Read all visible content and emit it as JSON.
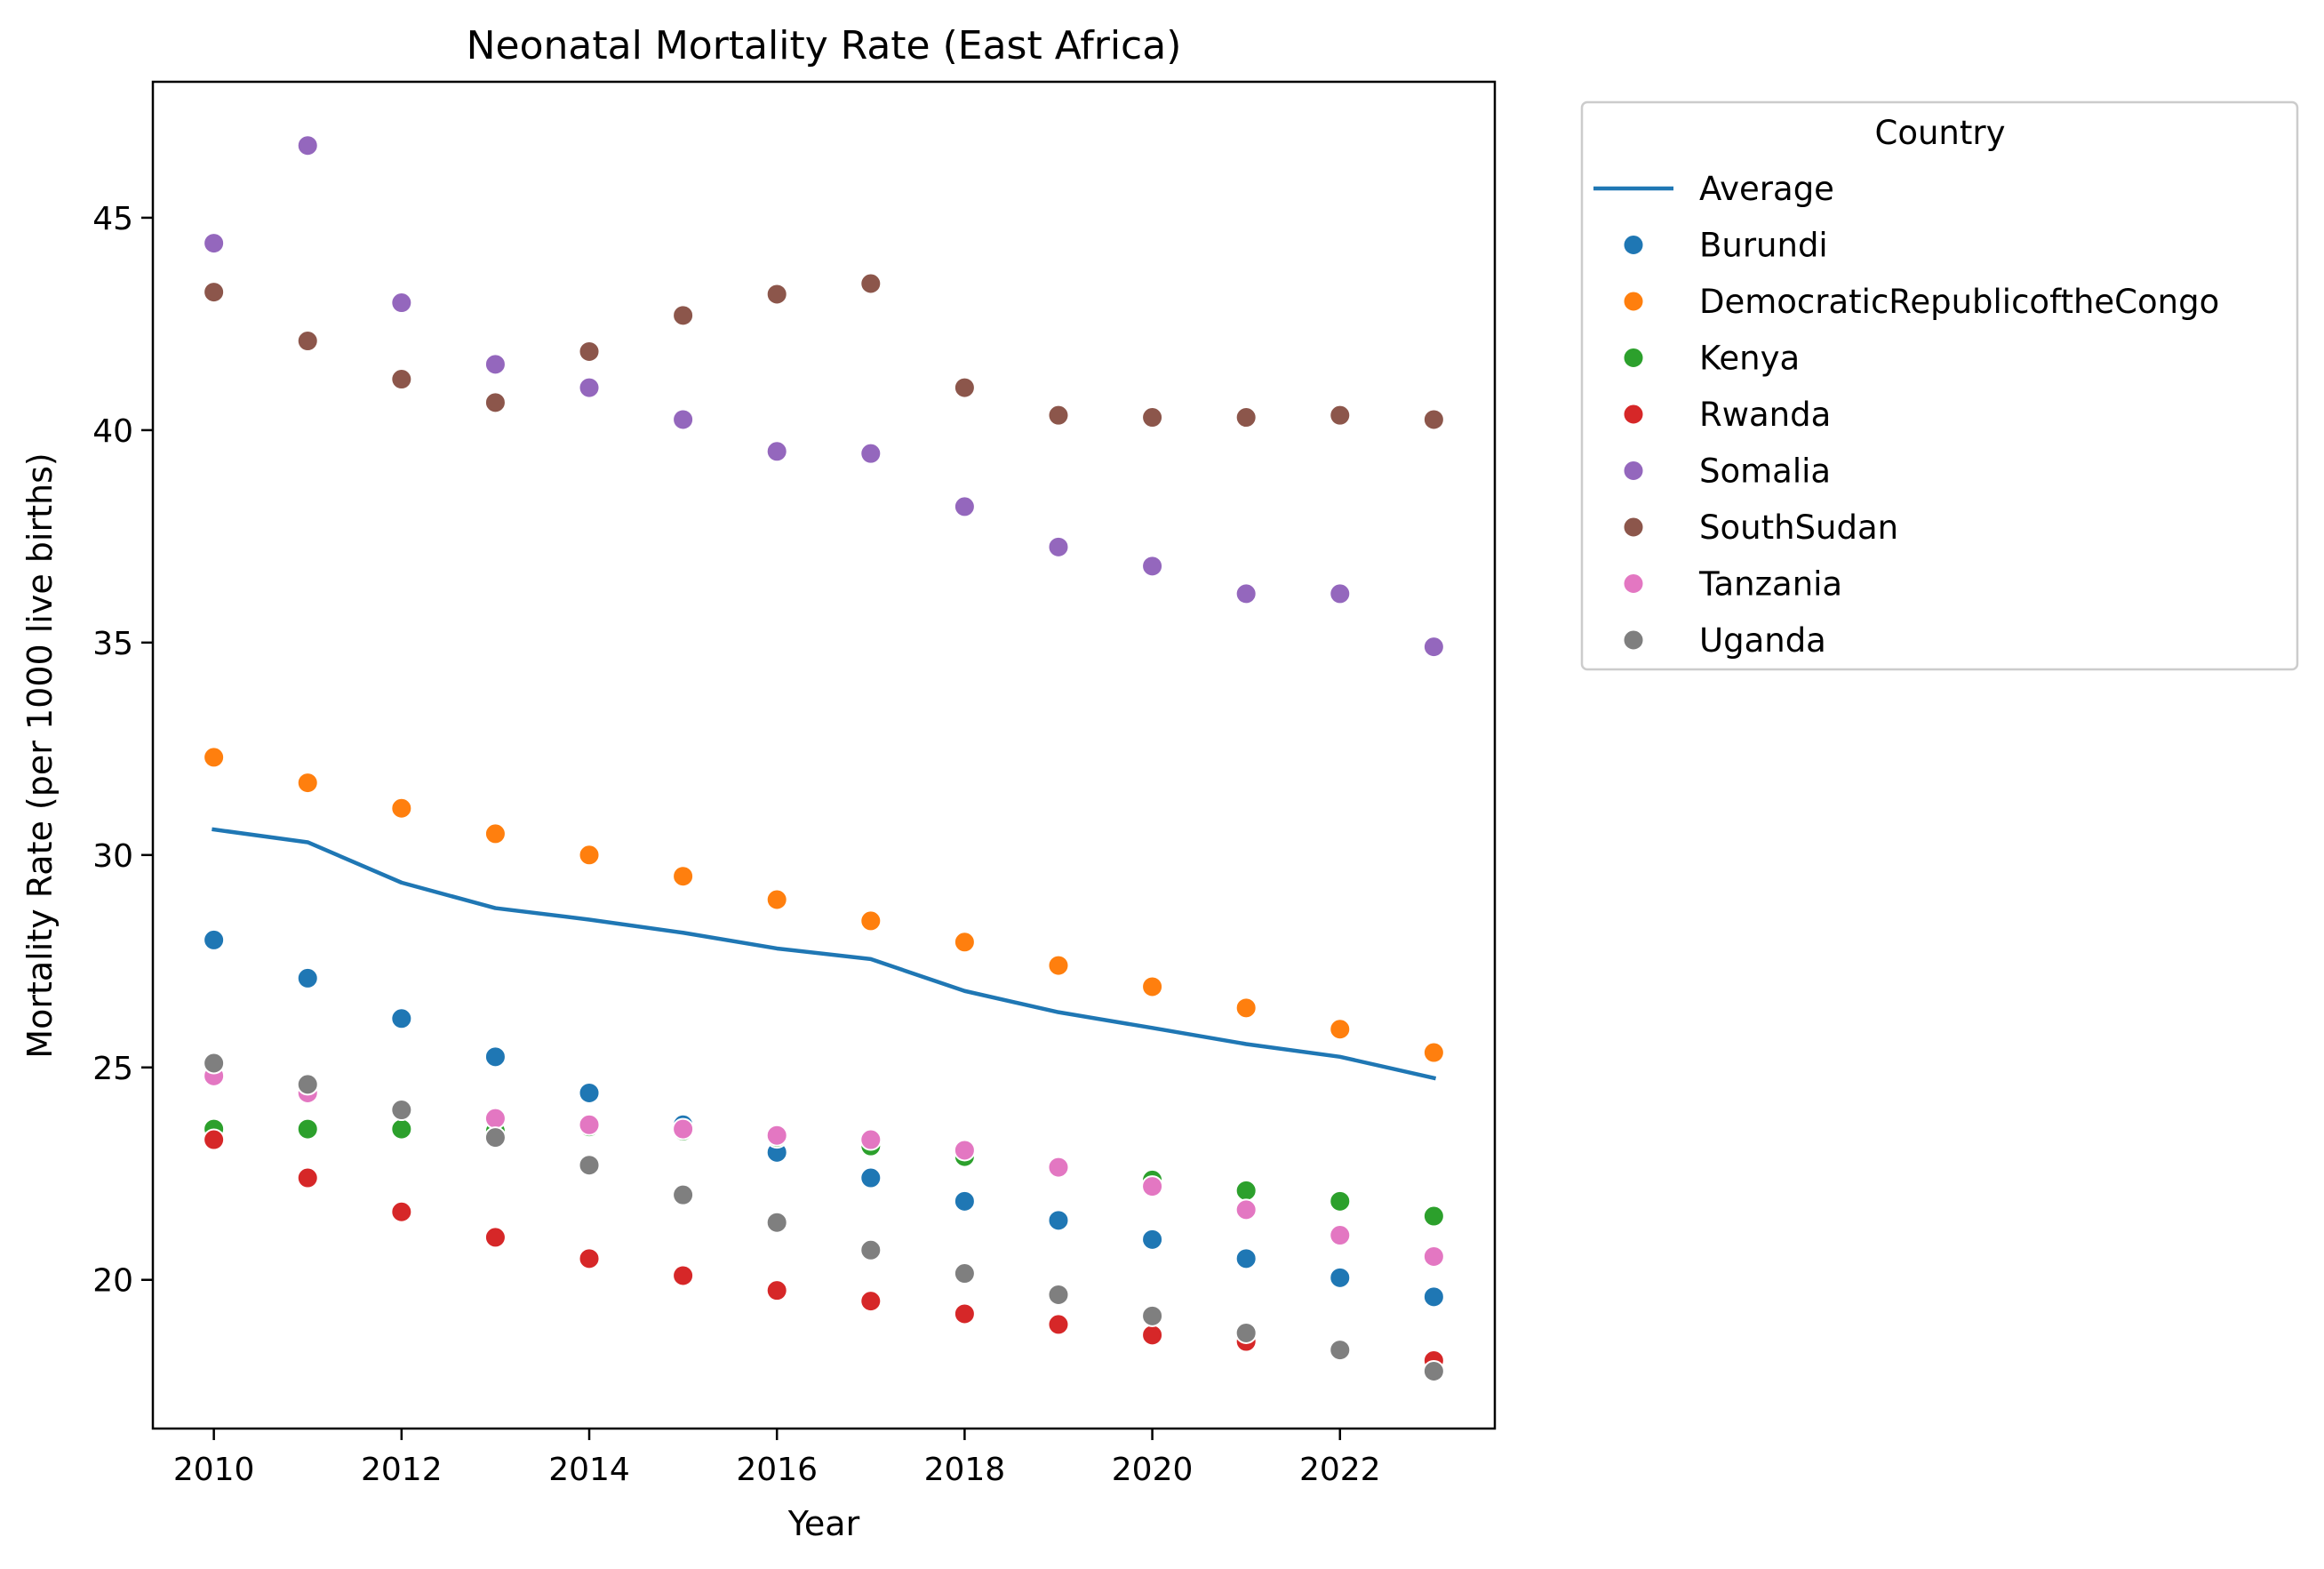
{
  "chart_data": {
    "type": "scatter",
    "title": "Neonatal Mortality Rate (East Africa)",
    "xlabel": "Year",
    "ylabel": "Mortality Rate (per 1000 live births)",
    "xlim": [
      2009.35,
      2023.65
    ],
    "ylim": [
      16.5,
      48.2
    ],
    "xticks": [
      2010,
      2012,
      2014,
      2016,
      2018,
      2020,
      2022
    ],
    "yticks": [
      20,
      25,
      30,
      35,
      40,
      45
    ],
    "grid": false,
    "legend": {
      "title": "Country",
      "placement": "outside-right-top"
    },
    "x": [
      2010,
      2011,
      2012,
      2013,
      2014,
      2015,
      2016,
      2017,
      2018,
      2019,
      2020,
      2021,
      2022,
      2023
    ],
    "average": {
      "name": "Average",
      "color": "#1f77b4",
      "values": [
        30.6,
        30.3,
        29.35,
        28.75,
        28.48,
        28.17,
        27.8,
        27.55,
        26.8,
        26.3,
        25.93,
        25.55,
        25.25,
        24.75
      ]
    },
    "series": [
      {
        "name": "Burundi",
        "color": "#1f77b4",
        "values": [
          28.0,
          27.1,
          26.15,
          25.25,
          24.4,
          23.65,
          23.0,
          22.4,
          21.85,
          21.4,
          20.95,
          20.5,
          20.05,
          19.6
        ]
      },
      {
        "name": "DemocraticRepublicoftheCongo",
        "color": "#ff7f0e",
        "values": [
          32.3,
          31.7,
          31.1,
          30.5,
          30.0,
          29.5,
          28.95,
          28.45,
          27.95,
          27.4,
          26.9,
          26.4,
          25.9,
          25.35
        ]
      },
      {
        "name": "Kenya",
        "color": "#2ca02c",
        "values": [
          23.55,
          23.55,
          23.55,
          23.5,
          23.6,
          23.5,
          23.35,
          23.15,
          22.9,
          22.65,
          22.35,
          22.1,
          21.85,
          21.5
        ]
      },
      {
        "name": "Rwanda",
        "color": "#d62728",
        "values": [
          23.3,
          22.4,
          21.6,
          21.0,
          20.5,
          20.1,
          19.75,
          19.5,
          19.2,
          18.95,
          18.7,
          18.55,
          18.35,
          18.1
        ]
      },
      {
        "name": "Somalia",
        "color": "#9467bd",
        "values": [
          44.4,
          46.7,
          43.0,
          41.55,
          41.0,
          40.25,
          39.5,
          39.45,
          38.2,
          37.25,
          36.8,
          36.15,
          36.15,
          34.9
        ]
      },
      {
        "name": "SouthSudan",
        "color": "#8c564b",
        "values": [
          43.25,
          42.1,
          41.2,
          40.65,
          41.85,
          42.7,
          43.2,
          43.45,
          41.0,
          40.35,
          40.3,
          40.3,
          40.35,
          40.25
        ]
      },
      {
        "name": "Tanzania",
        "color": "#e377c2",
        "values": [
          24.8,
          24.4,
          24.0,
          23.8,
          23.65,
          23.55,
          23.4,
          23.3,
          23.05,
          22.65,
          22.2,
          21.65,
          21.05,
          20.55
        ]
      },
      {
        "name": "Uganda",
        "color": "#7f7f7f",
        "values": [
          25.1,
          24.6,
          24.0,
          23.35,
          22.7,
          22.0,
          21.35,
          20.7,
          20.15,
          19.65,
          19.15,
          18.75,
          18.35,
          17.85
        ]
      }
    ]
  }
}
